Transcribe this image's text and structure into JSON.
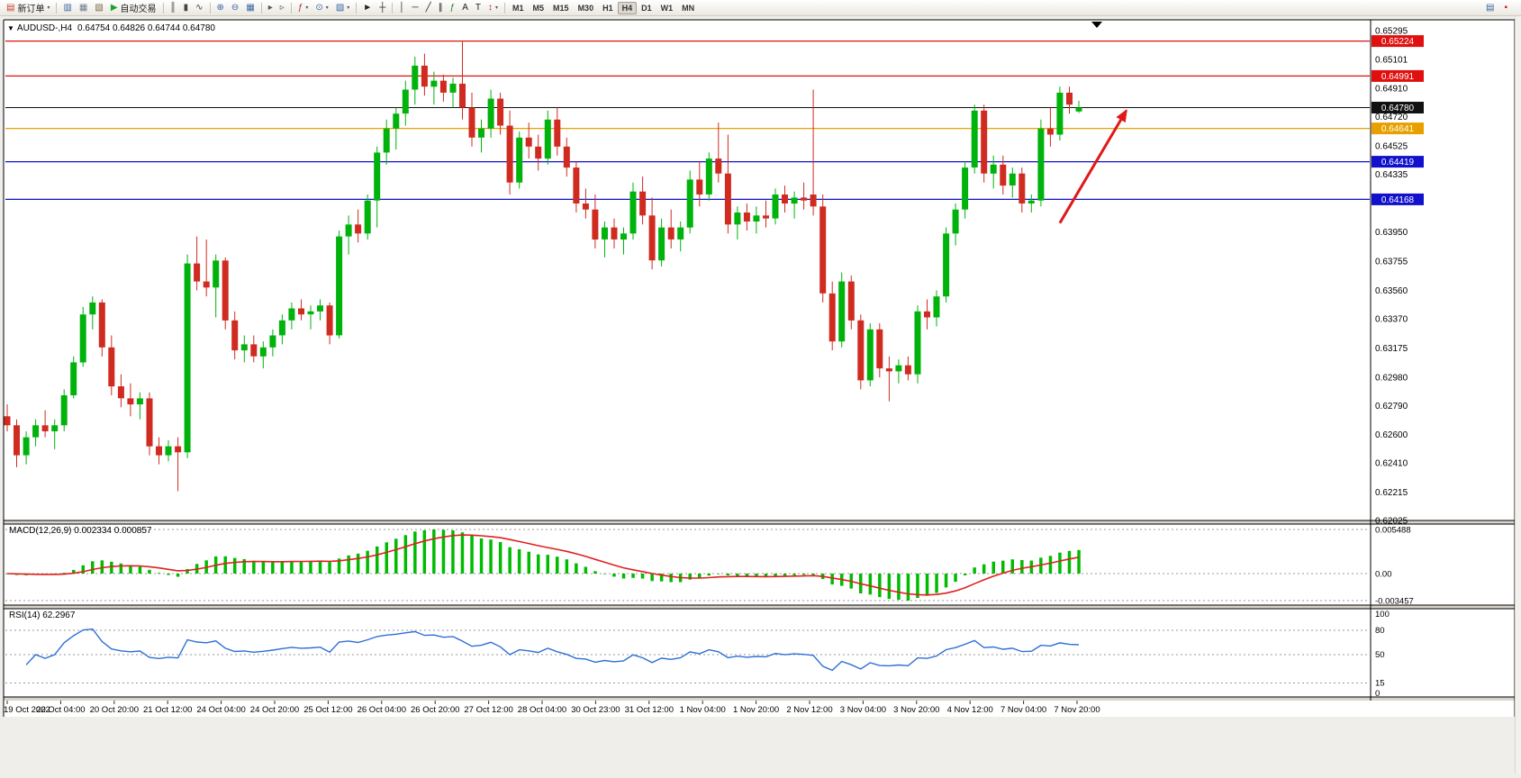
{
  "toolbar": {
    "timeframes": [
      "M1",
      "M5",
      "M15",
      "M30",
      "H1",
      "H4",
      "D1",
      "W1",
      "MN"
    ],
    "active_timeframe": "H4",
    "items": [
      {
        "type": "button",
        "name": "new-order-button",
        "icon": "new-order-icon",
        "glyph": "▤",
        "color": "#c43c2e",
        "label": "新订单",
        "caret": true
      },
      {
        "type": "sep"
      },
      {
        "type": "icon",
        "name": "market-watch-button",
        "icon": "market-watch-icon",
        "glyph": "▥",
        "color": "#38659e"
      },
      {
        "type": "icon",
        "name": "data-window-button",
        "icon": "data-window-icon",
        "glyph": "▦",
        "color": "#6d7d8d"
      },
      {
        "type": "icon",
        "name": "terminal-button",
        "icon": "terminal-icon",
        "glyph": "▧",
        "color": "#7a6a4a"
      },
      {
        "type": "button",
        "name": "autotrade-button",
        "icon": "autotrade-play-icon",
        "glyph": "▶",
        "color": "#1da32c",
        "label": "自动交易",
        "caret": false
      },
      {
        "type": "sep"
      },
      {
        "type": "icon",
        "name": "bars-chart-button",
        "icon": "bars-chart-icon",
        "glyph": "║",
        "color": "#444444"
      },
      {
        "type": "icon",
        "name": "candlestick-chart-button",
        "icon": "candlestick-chart-icon",
        "glyph": "▮",
        "color": "#444444"
      },
      {
        "type": "icon",
        "name": "line-chart-button",
        "icon": "line-chart-icon",
        "glyph": "∿",
        "color": "#444444"
      },
      {
        "type": "sep"
      },
      {
        "type": "icon",
        "name": "zoom-in-button",
        "icon": "zoom-in-icon",
        "glyph": "⊕",
        "color": "#38659e"
      },
      {
        "type": "icon",
        "name": "zoom-out-button",
        "icon": "zoom-out-icon",
        "glyph": "⊖",
        "color": "#38659e"
      },
      {
        "type": "icon",
        "name": "tile-windows-button",
        "icon": "tile-windows-icon",
        "glyph": "▦",
        "color": "#38659e"
      },
      {
        "type": "sep"
      },
      {
        "type": "icon",
        "name": "auto-scroll-button",
        "icon": "auto-scroll-icon",
        "glyph": "▸",
        "color": "#555555"
      },
      {
        "type": "icon",
        "name": "chart-shift-button",
        "icon": "chart-shift-icon",
        "glyph": "▹",
        "color": "#555555"
      },
      {
        "type": "sep"
      },
      {
        "type": "icon",
        "name": "indicators-button",
        "icon": "indicators-icon",
        "glyph": "ƒ",
        "color": "#b03030",
        "caret": true
      },
      {
        "type": "icon",
        "name": "periods-button",
        "icon": "periods-icon",
        "glyph": "⊙",
        "color": "#38659e",
        "caret": true
      },
      {
        "type": "icon",
        "name": "templates-button",
        "icon": "templates-icon",
        "glyph": "▨",
        "color": "#38659e",
        "caret": true
      },
      {
        "type": "sep"
      },
      {
        "type": "icon",
        "name": "cursor-button",
        "icon": "cursor-icon",
        "glyph": "►",
        "color": "#222222"
      },
      {
        "type": "icon",
        "name": "crosshair-button",
        "icon": "crosshair-icon",
        "glyph": "┼",
        "color": "#222222"
      },
      {
        "type": "sep"
      },
      {
        "type": "icon",
        "name": "vertical-line-button",
        "icon": "vertical-line-icon",
        "glyph": "│",
        "color": "#222222"
      },
      {
        "type": "icon",
        "name": "horizontal-line-button",
        "icon": "horizontal-line-icon",
        "glyph": "─",
        "color": "#222222"
      },
      {
        "type": "icon",
        "name": "trendline-button",
        "icon": "trendline-icon",
        "glyph": "╱",
        "color": "#222222"
      },
      {
        "type": "icon",
        "name": "channel-button",
        "icon": "channel-icon",
        "glyph": "∥",
        "color": "#222222"
      },
      {
        "type": "icon",
        "name": "fibonacci-button",
        "icon": "fibonacci-icon",
        "glyph": "ƒ",
        "color": "#2a7a2a"
      },
      {
        "type": "icon",
        "name": "text-button",
        "icon": "text-icon",
        "glyph": "A",
        "color": "#222222"
      },
      {
        "type": "icon",
        "name": "text-label-button",
        "icon": "text-label-icon",
        "glyph": "T",
        "color": "#222222"
      },
      {
        "type": "icon",
        "name": "arrows-button",
        "icon": "arrow-styles-icon",
        "glyph": "↕",
        "color": "#b03030",
        "caret": true
      },
      {
        "type": "sep"
      }
    ],
    "right_items": [
      {
        "name": "new-chart-button",
        "icon": "new-chart-icon",
        "glyph": "▤",
        "color": "#38659e"
      },
      {
        "name": "alert-button",
        "icon": "alert-icon",
        "glyph": "▪",
        "color": "#cc2020"
      }
    ]
  },
  "chart": {
    "legend_symbol": "AUDUSD-,H4",
    "legend_ohlc": "0.64754 0.64826 0.64744 0.64780",
    "macd_legend": "MACD(12,26,9) 0.002334 0.000857",
    "rsi_legend": "RSI(14) 62.2967"
  },
  "chart_data": {
    "type": "candlestick",
    "symbol": "AUDUSD-",
    "timeframe": "H4",
    "ohlc_display": {
      "open": "0.64754",
      "high": "0.64826",
      "low": "0.64744",
      "close": "0.64780"
    },
    "y_axis_range": [
      0.62025,
      0.65295
    ],
    "colors": {
      "up": "#00B30C",
      "down": "#D02B20"
    },
    "y_ticks": [
      0.65295,
      0.65101,
      0.6491,
      0.6472,
      0.64525,
      0.64335,
      0.6395,
      0.63755,
      0.6356,
      0.6337,
      0.63175,
      0.6298,
      0.6279,
      0.626,
      0.6241,
      0.62215,
      0.62025
    ],
    "price_flags": [
      {
        "price": 0.65224,
        "label": "0.65224",
        "color": "#E01010"
      },
      {
        "price": 0.64991,
        "label": "0.64991",
        "color": "#E01010"
      },
      {
        "price": 0.6478,
        "label": "0.64780",
        "color": "#111111"
      },
      {
        "price": 0.64641,
        "label": "0.64641",
        "color": "#E8A000"
      },
      {
        "price": 0.64419,
        "label": "0.64419",
        "color": "#1111CC"
      },
      {
        "price": 0.64168,
        "label": "0.64168",
        "color": "#1111CC"
      }
    ],
    "horizontal_lines": [
      {
        "price": 0.65224,
        "color": "#E01010"
      },
      {
        "price": 0.64991,
        "color": "#E01010"
      },
      {
        "price": 0.64641,
        "color": "#E8A000"
      },
      {
        "price": 0.64419,
        "color": "#1111CC"
      },
      {
        "price": 0.64168,
        "color": "#1111CC"
      }
    ],
    "current_price_line": {
      "price": 0.6478,
      "label": "0.64780",
      "color": "#111111"
    },
    "x_labels": [
      "19 Oct 2022",
      "20 Oct 04:00",
      "20 Oct 20:00",
      "21 Oct 12:00",
      "24 Oct 04:00",
      "24 Oct 20:00",
      "25 Oct 12:00",
      "26 Oct 04:00",
      "26 Oct 20:00",
      "27 Oct 12:00",
      "28 Oct 04:00",
      "30 Oct 23:00",
      "31 Oct 12:00",
      "1 Nov 04:00",
      "1 Nov 20:00",
      "2 Nov 12:00",
      "3 Nov 04:00",
      "3 Nov 20:00",
      "4 Nov 12:00",
      "7 Nov 04:00",
      "7 Nov 20:00"
    ],
    "candles": [
      [
        0.6272,
        0.628,
        0.6262,
        0.6266
      ],
      [
        0.6266,
        0.627,
        0.6238,
        0.6246
      ],
      [
        0.6246,
        0.6262,
        0.624,
        0.6258
      ],
      [
        0.6258,
        0.627,
        0.6252,
        0.6266
      ],
      [
        0.6266,
        0.6276,
        0.6258,
        0.6262
      ],
      [
        0.6262,
        0.627,
        0.625,
        0.6266
      ],
      [
        0.6266,
        0.629,
        0.6262,
        0.6286
      ],
      [
        0.6286,
        0.6312,
        0.6284,
        0.6308
      ],
      [
        0.6308,
        0.6345,
        0.6305,
        0.634
      ],
      [
        0.634,
        0.6352,
        0.633,
        0.6348
      ],
      [
        0.6348,
        0.635,
        0.6312,
        0.6318
      ],
      [
        0.6318,
        0.6326,
        0.6286,
        0.6292
      ],
      [
        0.6292,
        0.63,
        0.6278,
        0.6284
      ],
      [
        0.6284,
        0.6294,
        0.6272,
        0.628
      ],
      [
        0.628,
        0.6288,
        0.627,
        0.6284
      ],
      [
        0.6284,
        0.6288,
        0.6246,
        0.6252
      ],
      [
        0.6252,
        0.6258,
        0.624,
        0.6246
      ],
      [
        0.6246,
        0.6256,
        0.6242,
        0.6252
      ],
      [
        0.6252,
        0.6258,
        0.6222,
        0.6248
      ],
      [
        0.6248,
        0.638,
        0.6244,
        0.6374
      ],
      [
        0.6374,
        0.6392,
        0.6356,
        0.6362
      ],
      [
        0.6362,
        0.639,
        0.6352,
        0.6358
      ],
      [
        0.6358,
        0.638,
        0.6338,
        0.6376
      ],
      [
        0.6376,
        0.6378,
        0.633,
        0.6336
      ],
      [
        0.6336,
        0.6342,
        0.631,
        0.6316
      ],
      [
        0.6316,
        0.6326,
        0.6308,
        0.632
      ],
      [
        0.632,
        0.6326,
        0.6308,
        0.6312
      ],
      [
        0.6312,
        0.6322,
        0.6304,
        0.6318
      ],
      [
        0.6318,
        0.633,
        0.6312,
        0.6326
      ],
      [
        0.6326,
        0.634,
        0.632,
        0.6336
      ],
      [
        0.6336,
        0.6348,
        0.633,
        0.6344
      ],
      [
        0.6344,
        0.635,
        0.6336,
        0.634
      ],
      [
        0.634,
        0.6346,
        0.633,
        0.6342
      ],
      [
        0.6342,
        0.635,
        0.6336,
        0.6346
      ],
      [
        0.6346,
        0.6348,
        0.632,
        0.6326
      ],
      [
        0.6326,
        0.6396,
        0.6324,
        0.6392
      ],
      [
        0.6392,
        0.6406,
        0.638,
        0.64
      ],
      [
        0.64,
        0.641,
        0.6388,
        0.6394
      ],
      [
        0.6394,
        0.642,
        0.639,
        0.6416
      ],
      [
        0.6416,
        0.6452,
        0.6398,
        0.6448
      ],
      [
        0.6448,
        0.647,
        0.644,
        0.6464
      ],
      [
        0.6464,
        0.6478,
        0.645,
        0.6474
      ],
      [
        0.6474,
        0.6496,
        0.6466,
        0.649
      ],
      [
        0.649,
        0.6512,
        0.648,
        0.6506
      ],
      [
        0.6506,
        0.6514,
        0.6486,
        0.6492
      ],
      [
        0.6492,
        0.6502,
        0.648,
        0.6496
      ],
      [
        0.6496,
        0.65,
        0.6482,
        0.6488
      ],
      [
        0.6488,
        0.6498,
        0.6478,
        0.6494
      ],
      [
        0.6494,
        0.6522,
        0.647,
        0.6478
      ],
      [
        0.6478,
        0.6488,
        0.6452,
        0.6458
      ],
      [
        0.6458,
        0.647,
        0.6448,
        0.6464
      ],
      [
        0.6464,
        0.649,
        0.6458,
        0.6484
      ],
      [
        0.6484,
        0.6488,
        0.646,
        0.6466
      ],
      [
        0.6466,
        0.6476,
        0.642,
        0.6428
      ],
      [
        0.6428,
        0.6462,
        0.6424,
        0.6458
      ],
      [
        0.6458,
        0.6468,
        0.6444,
        0.6452
      ],
      [
        0.6452,
        0.646,
        0.6436,
        0.6444
      ],
      [
        0.6444,
        0.6476,
        0.644,
        0.647
      ],
      [
        0.647,
        0.6478,
        0.6446,
        0.6452
      ],
      [
        0.6452,
        0.6458,
        0.6432,
        0.6438
      ],
      [
        0.6438,
        0.6442,
        0.6408,
        0.6414
      ],
      [
        0.6414,
        0.6424,
        0.6404,
        0.641
      ],
      [
        0.641,
        0.642,
        0.6384,
        0.639
      ],
      [
        0.639,
        0.6402,
        0.6378,
        0.6398
      ],
      [
        0.6398,
        0.6404,
        0.6384,
        0.639
      ],
      [
        0.639,
        0.6398,
        0.638,
        0.6394
      ],
      [
        0.6394,
        0.6428,
        0.639,
        0.6422
      ],
      [
        0.6422,
        0.6432,
        0.64,
        0.6406
      ],
      [
        0.6406,
        0.6418,
        0.637,
        0.6376
      ],
      [
        0.6376,
        0.6404,
        0.6372,
        0.6398
      ],
      [
        0.6398,
        0.641,
        0.6384,
        0.639
      ],
      [
        0.639,
        0.6402,
        0.6382,
        0.6398
      ],
      [
        0.6398,
        0.6436,
        0.6394,
        0.643
      ],
      [
        0.643,
        0.6442,
        0.6412,
        0.642
      ],
      [
        0.642,
        0.6448,
        0.6416,
        0.6444
      ],
      [
        0.6444,
        0.6468,
        0.6428,
        0.6434
      ],
      [
        0.6434,
        0.646,
        0.6394,
        0.64
      ],
      [
        0.64,
        0.6412,
        0.639,
        0.6408
      ],
      [
        0.6408,
        0.6414,
        0.6396,
        0.6402
      ],
      [
        0.6402,
        0.6412,
        0.6394,
        0.6406
      ],
      [
        0.6406,
        0.6416,
        0.6398,
        0.6404
      ],
      [
        0.6404,
        0.6424,
        0.64,
        0.642
      ],
      [
        0.642,
        0.6426,
        0.6408,
        0.6414
      ],
      [
        0.6414,
        0.6422,
        0.6404,
        0.6418
      ],
      [
        0.6418,
        0.6428,
        0.641,
        0.6416
      ],
      [
        0.642,
        0.649,
        0.6406,
        0.6412
      ],
      [
        0.6412,
        0.642,
        0.6348,
        0.6354
      ],
      [
        0.6354,
        0.6362,
        0.6316,
        0.6322
      ],
      [
        0.6322,
        0.6368,
        0.6318,
        0.6362
      ],
      [
        0.6362,
        0.6366,
        0.633,
        0.6336
      ],
      [
        0.6336,
        0.634,
        0.629,
        0.6296
      ],
      [
        0.6296,
        0.6334,
        0.6292,
        0.633
      ],
      [
        0.633,
        0.6334,
        0.6298,
        0.6304
      ],
      [
        0.6304,
        0.6312,
        0.6282,
        0.6302
      ],
      [
        0.6302,
        0.631,
        0.6294,
        0.6306
      ],
      [
        0.6306,
        0.6312,
        0.6296,
        0.63
      ],
      [
        0.63,
        0.6346,
        0.6294,
        0.6342
      ],
      [
        0.6342,
        0.635,
        0.633,
        0.6338
      ],
      [
        0.6338,
        0.6356,
        0.6332,
        0.6352
      ],
      [
        0.6352,
        0.6398,
        0.6348,
        0.6394
      ],
      [
        0.6394,
        0.6414,
        0.6386,
        0.641
      ],
      [
        0.641,
        0.6442,
        0.6404,
        0.6438
      ],
      [
        0.6438,
        0.648,
        0.6434,
        0.6476
      ],
      [
        0.6476,
        0.648,
        0.6428,
        0.6434
      ],
      [
        0.6434,
        0.6446,
        0.6424,
        0.644
      ],
      [
        0.644,
        0.6446,
        0.642,
        0.6426
      ],
      [
        0.6426,
        0.6438,
        0.6418,
        0.6434
      ],
      [
        0.6434,
        0.6438,
        0.6408,
        0.6414
      ],
      [
        0.6414,
        0.642,
        0.6408,
        0.6416
      ],
      [
        0.6416,
        0.647,
        0.6412,
        0.6464
      ],
      [
        0.6464,
        0.6478,
        0.6452,
        0.646
      ],
      [
        0.646,
        0.6492,
        0.6456,
        0.6488
      ],
      [
        0.6488,
        0.6492,
        0.6474,
        0.648
      ],
      [
        0.64754,
        0.64826,
        0.64744,
        0.6478
      ]
    ],
    "indicators": [
      {
        "name": "MACD",
        "params": [
          12,
          26,
          9
        ],
        "display": "MACD(12,26,9) 0.002334 0.000857",
        "values": [
          0.002334,
          0.000857
        ],
        "scale_ticks": [
          {
            "v": 0.005488,
            "t": "0.005488"
          },
          {
            "v": 0,
            "t": "0.00"
          },
          {
            "v": -0.003457,
            "t": "-0.003457"
          }
        ],
        "histogram_color": "#00BB00",
        "signal_color": "#E02020"
      },
      {
        "name": "RSI",
        "params": [
          14
        ],
        "display": "RSI(14) 62.2967",
        "value": 62.2967,
        "scale_ticks": [
          {
            "v": 100,
            "t": "100"
          },
          {
            "v": 80,
            "t": "80"
          },
          {
            "v": 50,
            "t": "50"
          },
          {
            "v": 15,
            "t": "15"
          },
          {
            "v": 0,
            "t": "0"
          }
        ],
        "levels": [
          80,
          50,
          15
        ],
        "line_color": "#2E6FD6"
      }
    ],
    "annotations": [
      {
        "type": "arrow",
        "color": "#E01818",
        "from": {
          "index": 111,
          "price": 0.6401
        },
        "to": {
          "index": 118,
          "price": 0.6476
        }
      }
    ]
  }
}
